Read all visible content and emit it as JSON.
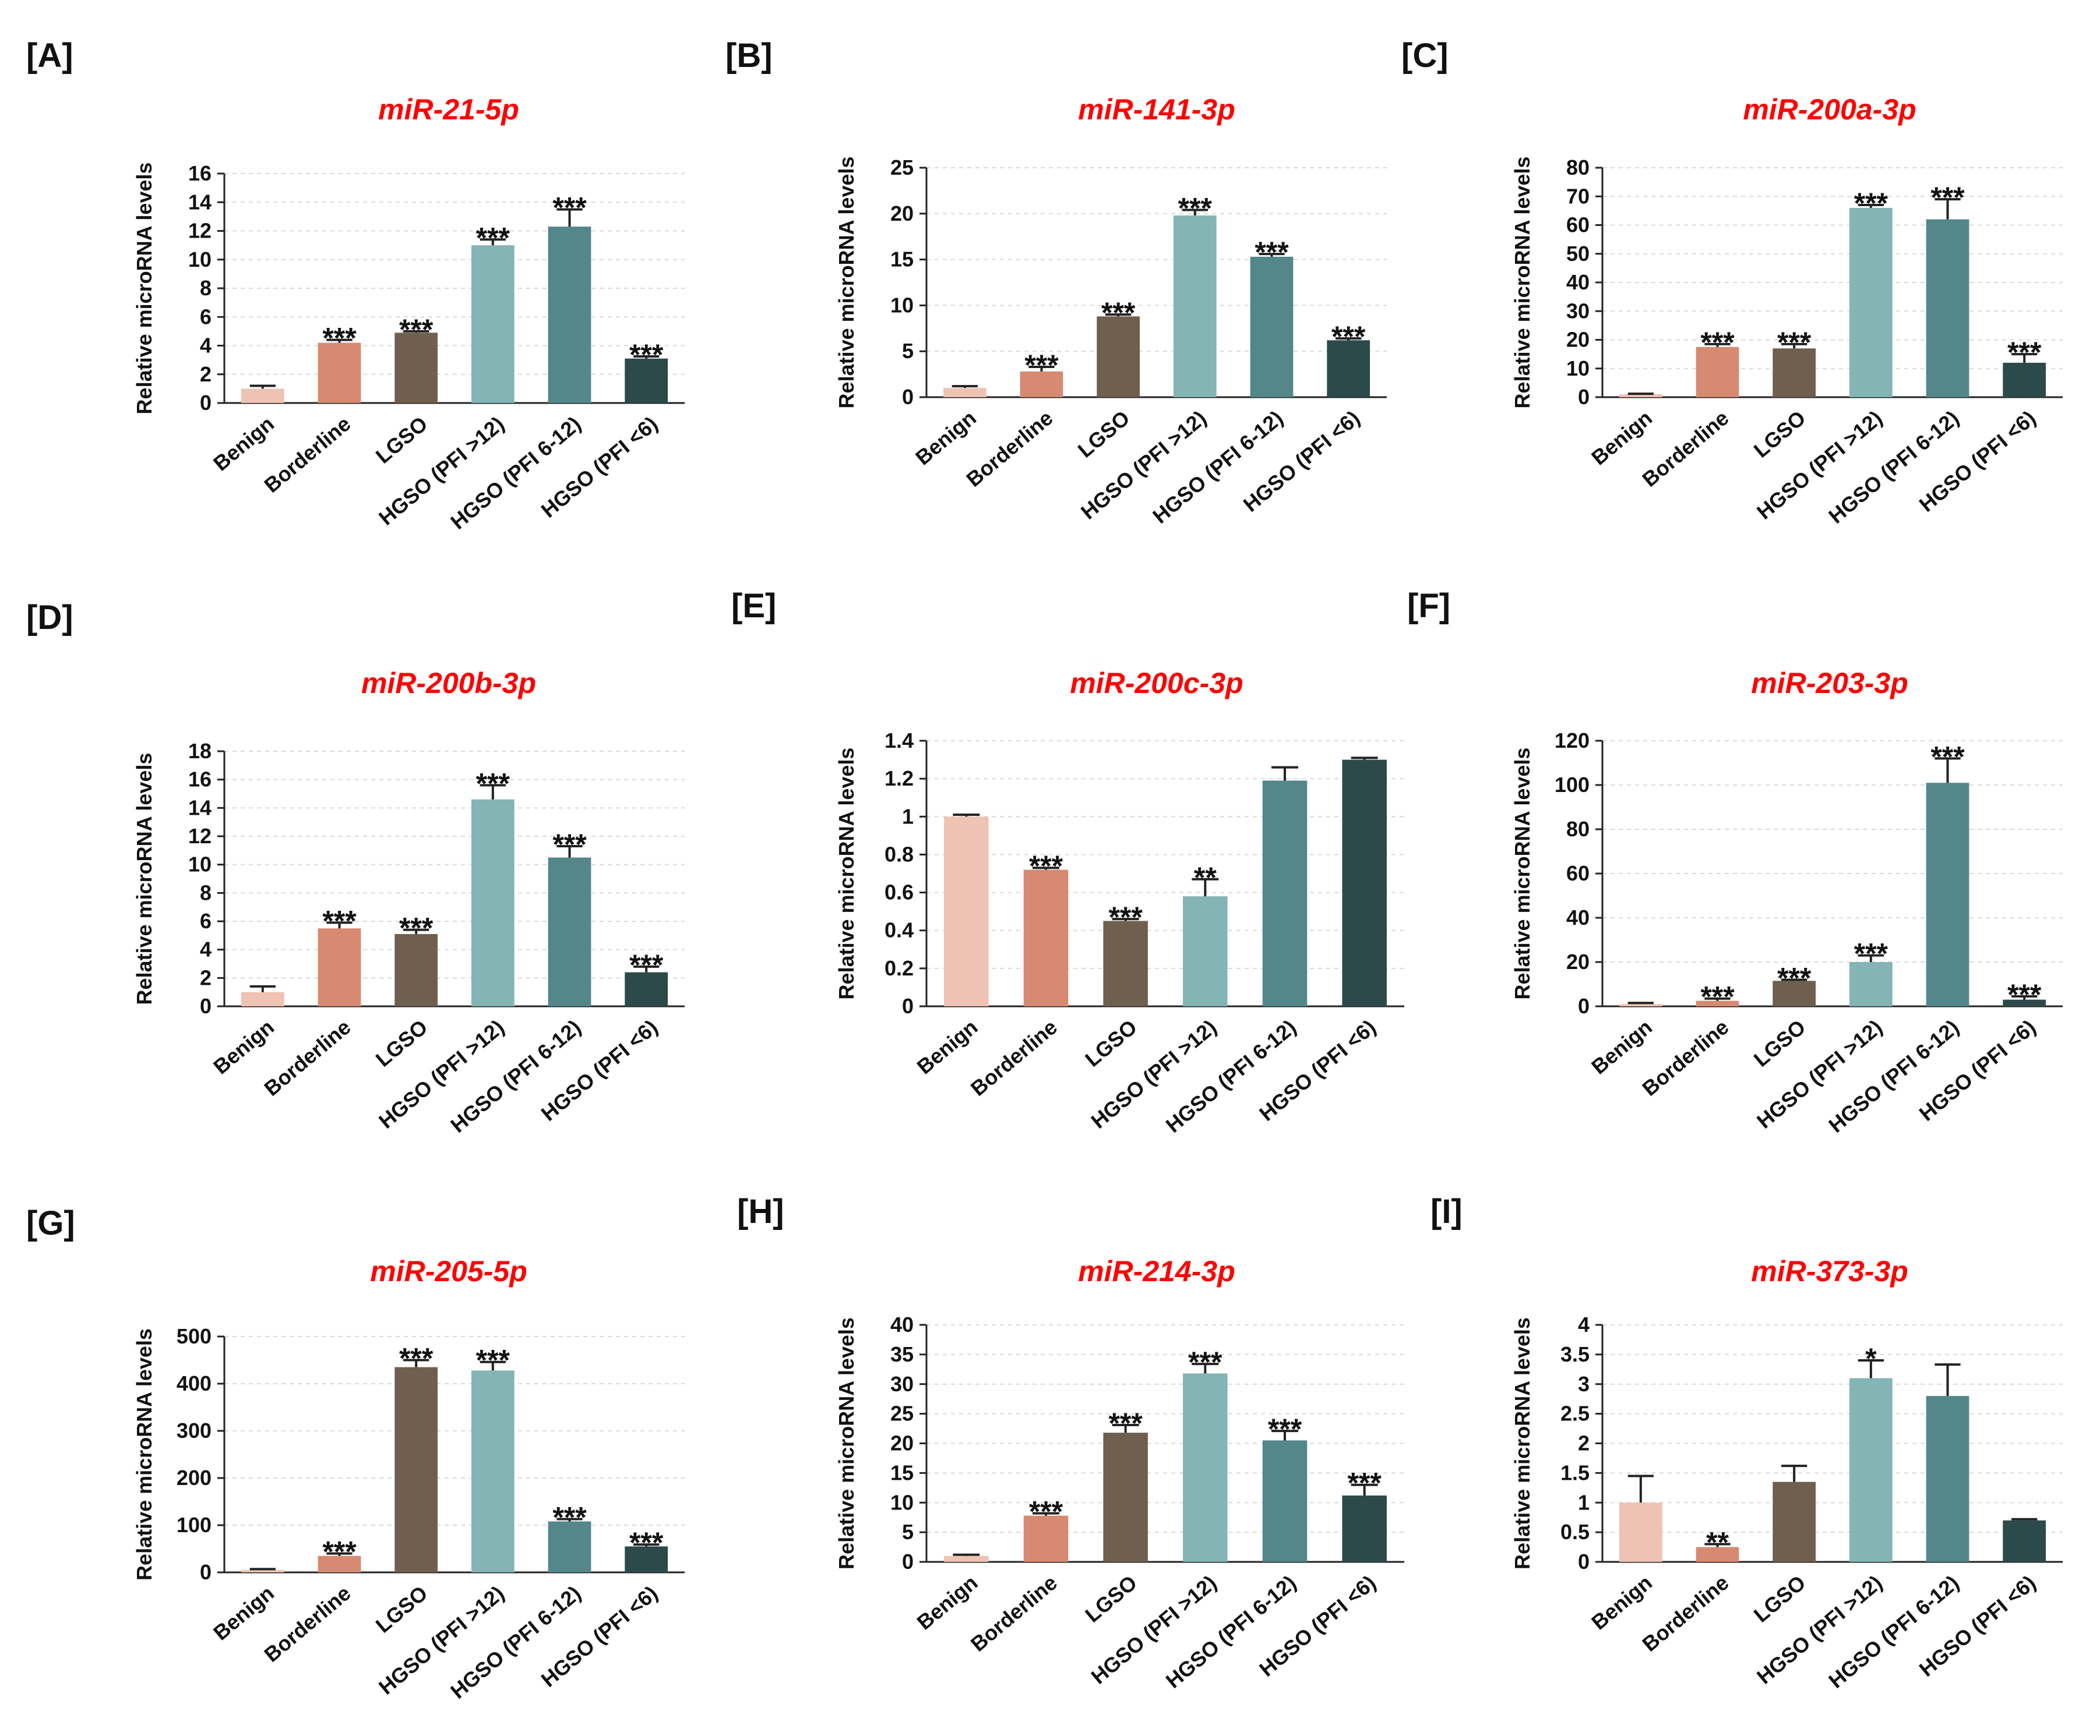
{
  "category_colors": [
    "#eec3b4",
    "#d68a72",
    "#6e5f4e",
    "#84b4b4",
    "#53878a",
    "#2d4a4b"
  ],
  "chart_data": [
    {
      "type": "bar",
      "panel": "[A]",
      "title": "miR-21-5p",
      "ylabel": "Relative microRNA levels",
      "categories": [
        "Benign",
        "Borderline",
        "LGSO",
        "HGSO (PFI >12)",
        "HGSO (PFI 6-12)",
        "HGSO (PFI <6)"
      ],
      "values": [
        1,
        4.2,
        4.9,
        11,
        12.3,
        3.1
      ],
      "errors": [
        0.2,
        0.2,
        0.1,
        0.4,
        1.2,
        0.15
      ],
      "significance": [
        "",
        "***",
        "***",
        "***",
        "***",
        "***"
      ],
      "ylim": [
        0,
        16
      ],
      "yticks": [
        "0",
        "2",
        "4",
        "6",
        "8",
        "10",
        "12",
        "14",
        "16"
      ],
      "grid": true
    },
    {
      "type": "bar",
      "panel": "[B]",
      "title": "miR-141-3p",
      "ylabel": "Relative microRNA levels",
      "categories": [
        "Benign",
        "Borderline",
        "LGSO",
        "HGSO (PFI >12)",
        "HGSO (PFI 6-12)",
        "HGSO (PFI <6)"
      ],
      "values": [
        1,
        2.8,
        8.8,
        19.8,
        15.3,
        6.2
      ],
      "errors": [
        0.2,
        0.5,
        0.2,
        0.6,
        0.3,
        0.2
      ],
      "significance": [
        "",
        "***",
        "***",
        "***",
        "***",
        "***"
      ],
      "ylim": [
        0,
        25
      ],
      "yticks": [
        "0",
        "5",
        "10",
        "15",
        "20",
        "25"
      ],
      "grid": true
    },
    {
      "type": "bar",
      "panel": "[C]",
      "title": "miR-200a-3p",
      "ylabel": "Relative microRNA levels",
      "categories": [
        "Benign",
        "Borderline",
        "LGSO",
        "HGSO (PFI >12)",
        "HGSO (PFI 6-12)",
        "HGSO (PFI <6)"
      ],
      "values": [
        1,
        17.5,
        17,
        66,
        62,
        12
      ],
      "errors": [
        0.2,
        1,
        1.5,
        1,
        7,
        3
      ],
      "significance": [
        "",
        "***",
        "***",
        "***",
        "***",
        "***"
      ],
      "ylim": [
        0,
        80
      ],
      "yticks": [
        "0",
        "10",
        "20",
        "30",
        "40",
        "50",
        "60",
        "70",
        "80"
      ],
      "grid": true
    },
    {
      "type": "bar",
      "panel": "[D]",
      "title": "miR-200b-3p",
      "ylabel": "Relative microRNA levels",
      "categories": [
        "Benign",
        "Borderline",
        "LGSO",
        "HGSO (PFI >12)",
        "HGSO (PFI 6-12)",
        "HGSO (PFI <6)"
      ],
      "values": [
        1,
        5.5,
        5.1,
        14.6,
        10.5,
        2.4
      ],
      "errors": [
        0.4,
        0.4,
        0.3,
        1,
        0.8,
        0.4
      ],
      "significance": [
        "",
        "***",
        "***",
        "***",
        "***",
        "***"
      ],
      "ylim": [
        0,
        18
      ],
      "yticks": [
        "0",
        "2",
        "4",
        "6",
        "8",
        "10",
        "12",
        "14",
        "16",
        "18"
      ],
      "grid": true
    },
    {
      "type": "bar",
      "panel": "[E]",
      "title": "miR-200c-3p",
      "ylabel": "Relative microRNA levels",
      "categories": [
        "Benign",
        "Borderline",
        "LGSO",
        "HGSO (PFI >12)",
        "HGSO (PFI 6-12)",
        "HGSO (PFI <6)"
      ],
      "values": [
        1,
        0.72,
        0.45,
        0.58,
        1.19,
        1.3
      ],
      "errors": [
        0.01,
        0.01,
        0.01,
        0.09,
        0.07,
        0.01
      ],
      "significance": [
        "",
        "***",
        "***",
        "**",
        "",
        ""
      ],
      "ylim": [
        0,
        1.4
      ],
      "yticks": [
        "0",
        "0.2",
        "0.4",
        "0.6",
        "0.8",
        "1",
        "1.2",
        "1.4"
      ],
      "grid": true
    },
    {
      "type": "bar",
      "panel": "[F]",
      "title": "miR-203-3p",
      "ylabel": "Relative microRNA levels",
      "categories": [
        "Benign",
        "Borderline",
        "LGSO",
        "HGSO (PFI >12)",
        "HGSO (PFI 6-12)",
        "HGSO (PFI <6)"
      ],
      "values": [
        1,
        2.5,
        11.5,
        20,
        101,
        3
      ],
      "errors": [
        0.5,
        1,
        0.5,
        3,
        11,
        1.5
      ],
      "significance": [
        "",
        "***",
        "***",
        "***",
        "***",
        "***"
      ],
      "ylim": [
        0,
        120
      ],
      "yticks": [
        "0",
        "20",
        "40",
        "60",
        "80",
        "100",
        "120"
      ],
      "grid": true
    },
    {
      "type": "bar",
      "panel": "[G]",
      "title": "miR-205-5p",
      "ylabel": "Relative microRNA levels",
      "categories": [
        "Benign",
        "Borderline",
        "LGSO",
        "HGSO (PFI >12)",
        "HGSO (PFI 6-12)",
        "HGSO (PFI <6)"
      ],
      "values": [
        5,
        35,
        435,
        428,
        108,
        55
      ],
      "errors": [
        2,
        5,
        15,
        18,
        5,
        4
      ],
      "significance": [
        "",
        "***",
        "***",
        "***",
        "***",
        "***"
      ],
      "ylim": [
        0,
        500
      ],
      "yticks": [
        "0",
        "100",
        "200",
        "300",
        "400",
        "500"
      ],
      "grid": true
    },
    {
      "type": "bar",
      "panel": "[H]",
      "title": "miR-214-3p",
      "ylabel": "Relative microRNA levels",
      "categories": [
        "Benign",
        "Borderline",
        "LGSO",
        "HGSO (PFI >12)",
        "HGSO (PFI 6-12)",
        "HGSO (PFI <6)"
      ],
      "values": [
        1,
        7.8,
        21.8,
        31.8,
        20.5,
        11.2
      ],
      "errors": [
        0.2,
        0.4,
        1.3,
        1.6,
        1.6,
        1.8
      ],
      "significance": [
        "",
        "***",
        "***",
        "***",
        "***",
        "***"
      ],
      "ylim": [
        0,
        40
      ],
      "yticks": [
        "0",
        "5",
        "10",
        "15",
        "20",
        "25",
        "30",
        "35",
        "40"
      ],
      "grid": true
    },
    {
      "type": "bar",
      "panel": "[I]",
      "title": "miR-373-3p",
      "ylabel": "Relative microRNA levels",
      "categories": [
        "Benign",
        "Borderline",
        "LGSO",
        "HGSO (PFI >12)",
        "HGSO (PFI 6-12)",
        "HGSO (PFI <6)"
      ],
      "values": [
        1,
        0.25,
        1.35,
        3.1,
        2.8,
        0.7
      ],
      "errors": [
        0.45,
        0.05,
        0.27,
        0.3,
        0.53,
        0.02
      ],
      "significance": [
        "",
        "**",
        "",
        "*",
        "",
        ""
      ],
      "ylim": [
        0,
        4
      ],
      "yticks": [
        "0",
        "0.5",
        "1",
        "1.5",
        "2",
        "2.5",
        "3",
        "3.5",
        "4"
      ],
      "grid": true
    }
  ]
}
